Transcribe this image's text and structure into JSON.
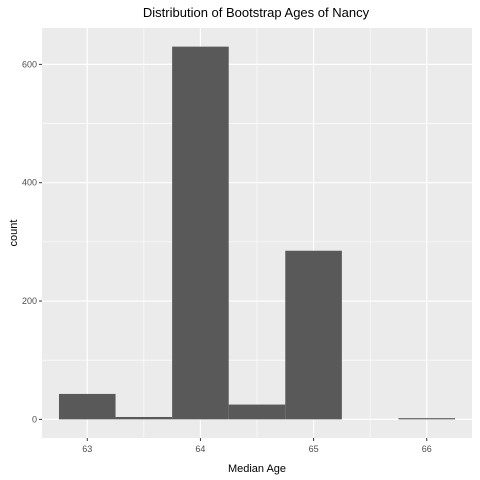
{
  "chart_data": {
    "type": "bar",
    "title": "Distribution of Bootstrap Ages of Nancy",
    "xlabel": "Median Age",
    "ylabel": "count",
    "bin_width": 0.5,
    "bins": [
      {
        "start": 62.75,
        "end": 63.25,
        "count": 43
      },
      {
        "start": 63.25,
        "end": 63.75,
        "count": 4
      },
      {
        "start": 63.75,
        "end": 64.25,
        "count": 630
      },
      {
        "start": 64.25,
        "end": 64.75,
        "count": 25
      },
      {
        "start": 64.75,
        "end": 65.25,
        "count": 285
      },
      {
        "start": 65.25,
        "end": 65.75,
        "count": 0
      },
      {
        "start": 65.75,
        "end": 66.25,
        "count": 2
      }
    ],
    "xlim": [
      62.6,
      66.4
    ],
    "ylim": [
      -31.5,
      661.5
    ],
    "x_ticks": [
      63,
      64,
      65,
      66
    ],
    "x_tick_labels": [
      "63",
      "64",
      "65",
      "66"
    ],
    "y_ticks": [
      0,
      200,
      400,
      600
    ],
    "y_tick_labels": [
      "0",
      "200",
      "400",
      "600"
    ],
    "grid": true,
    "colors": {
      "panel_background": "#ebebeb",
      "grid_major": "#ffffff",
      "bar_fill": "#595959"
    }
  }
}
